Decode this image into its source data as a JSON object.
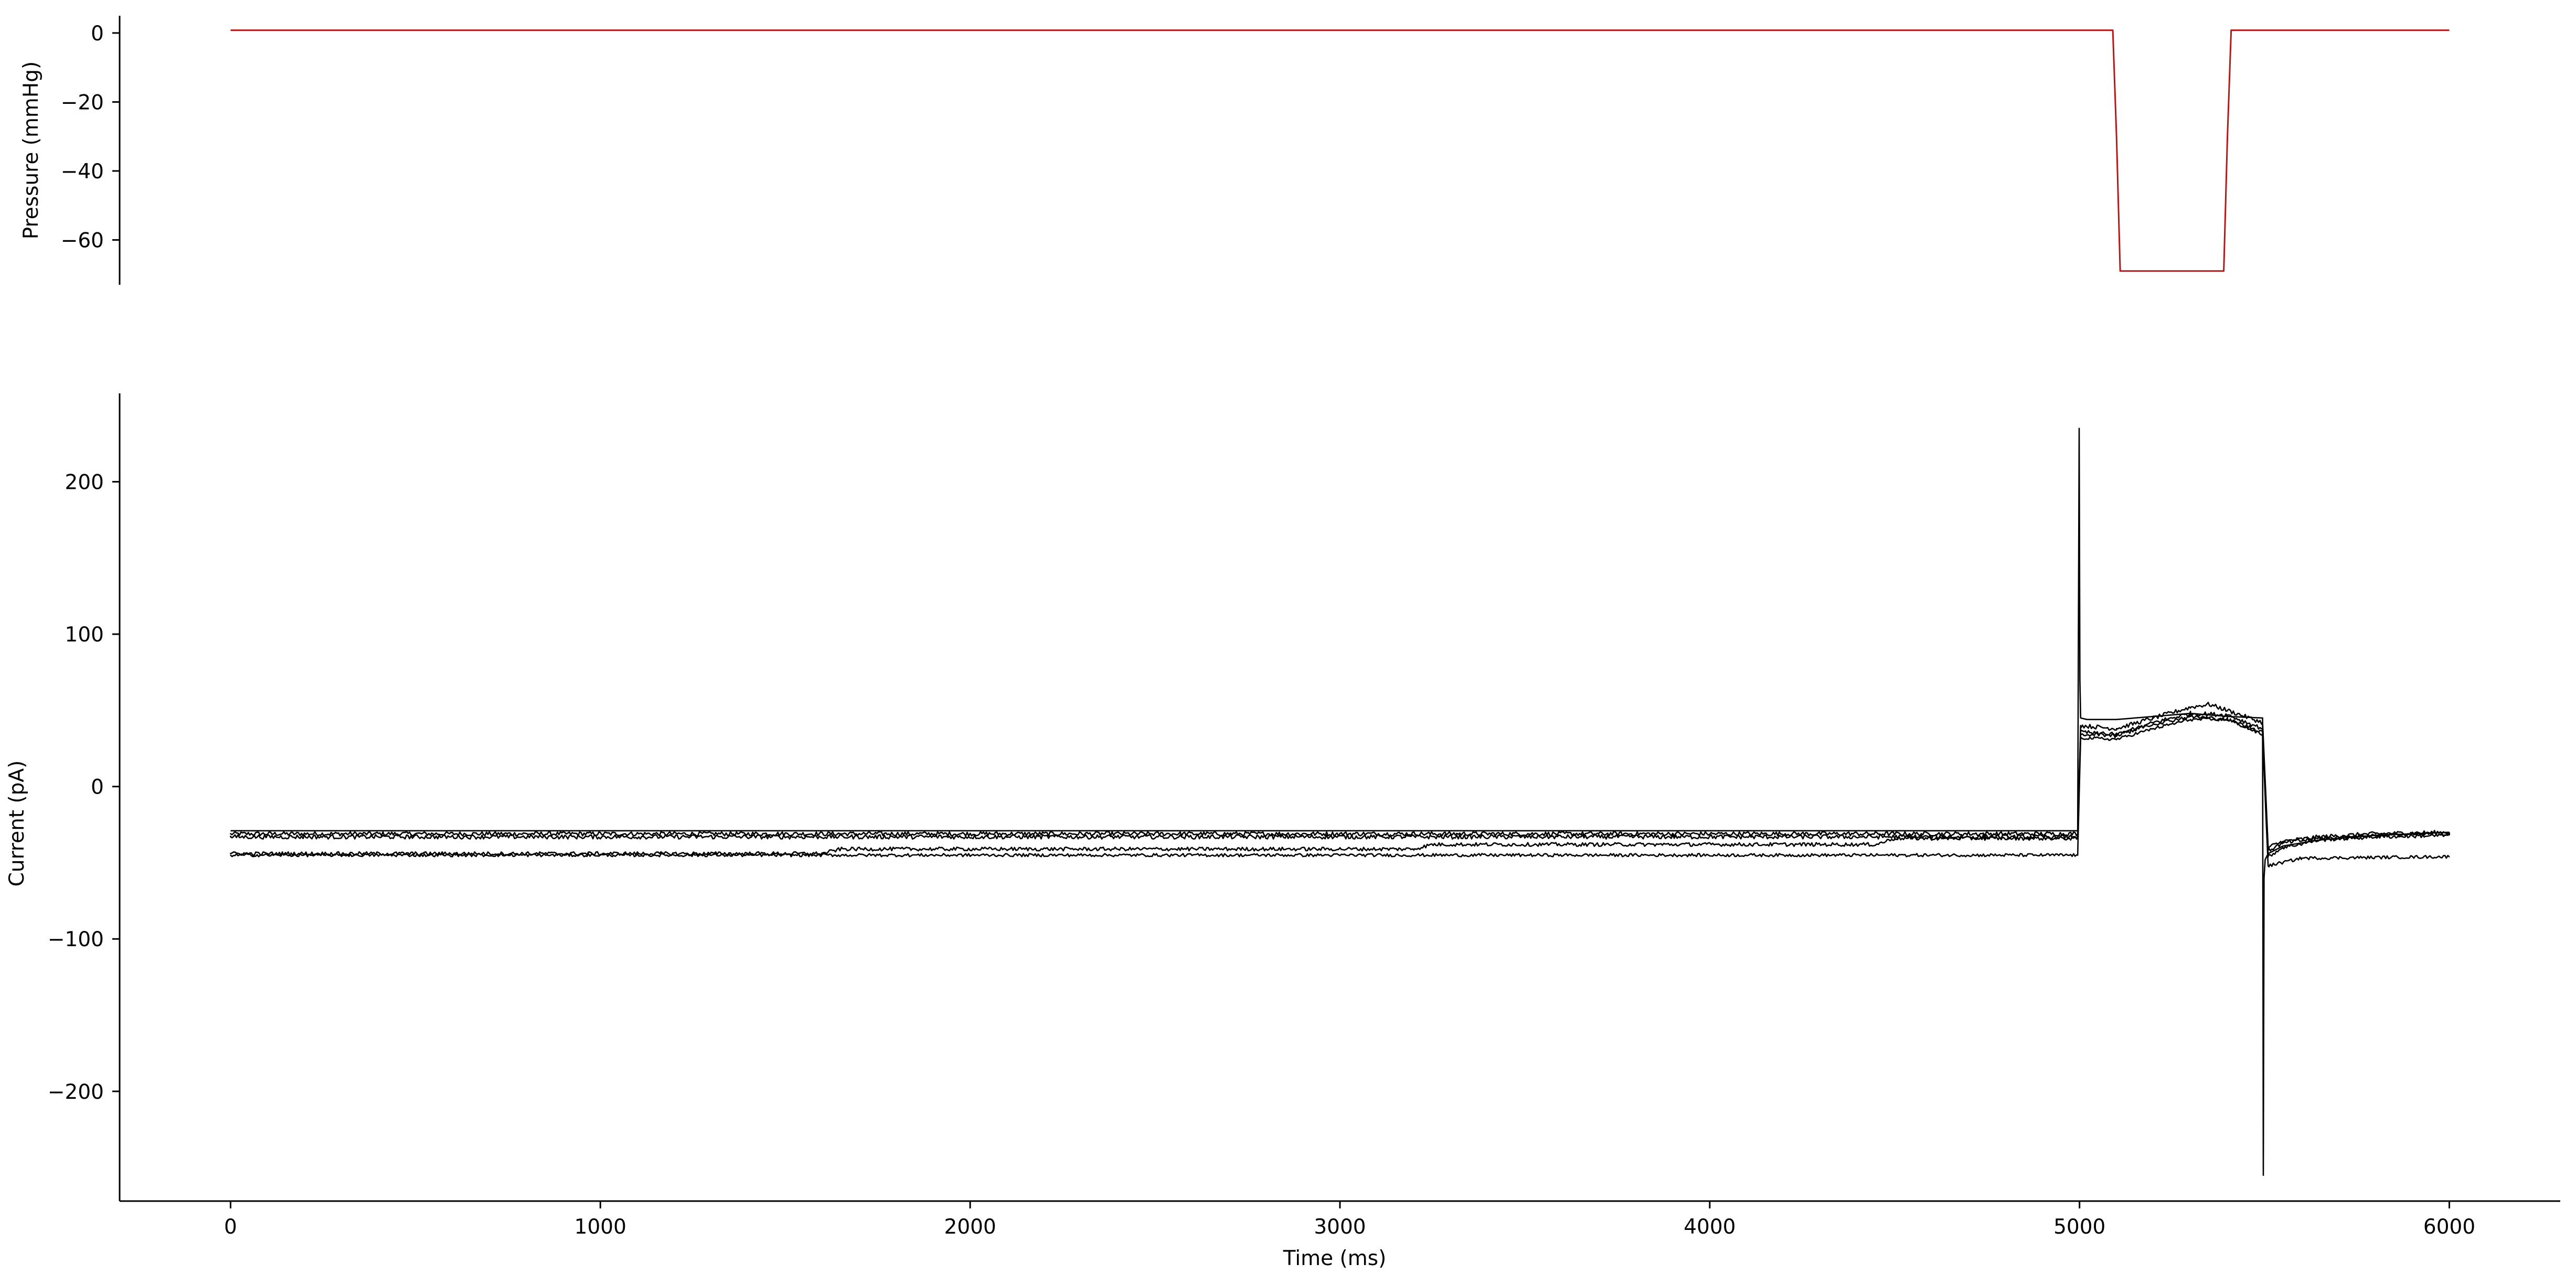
{
  "chart_data": [
    {
      "type": "line",
      "title": "",
      "xlabel": "",
      "ylabel": "Pressure (mmHg)",
      "xlim": [
        -300,
        6300
      ],
      "ylim": [
        -73,
        5
      ],
      "y_ticks": [
        0,
        -20,
        -40,
        -60
      ],
      "y_tick_labels": [
        "0",
        "−20",
        "−40",
        "−60"
      ],
      "grid": false,
      "legend": "none",
      "series": [
        {
          "color": "#b11a1a",
          "x": [
            0,
            5090,
            5100,
            5110,
            5390,
            5400,
            5410,
            6000
          ],
          "y": [
            0.8,
            0.8,
            -30,
            -69,
            -69,
            -30,
            0.8,
            0.8
          ]
        }
      ]
    },
    {
      "type": "line",
      "title": "",
      "xlabel": "Time (ms)",
      "ylabel": "Current (pA)",
      "xlim": [
        -300,
        6300
      ],
      "ylim": [
        -272,
        258
      ],
      "x_ticks": [
        0,
        1000,
        2000,
        3000,
        4000,
        5000,
        6000
      ],
      "x_tick_labels": [
        "0",
        "1000",
        "2000",
        "3000",
        "4000",
        "5000",
        "6000"
      ],
      "y_ticks": [
        200,
        100,
        0,
        -100,
        -200
      ],
      "y_tick_labels": [
        "200",
        "100",
        "0",
        "−100",
        "−200"
      ],
      "grid": false,
      "legend": "none",
      "series": [
        {
          "color": "#000000",
          "x": [
            0,
            4995,
            4999,
            5001,
            5003,
            5020,
            5100,
            5200,
            5300,
            5400,
            5495,
            5497,
            5499,
            5502,
            5510,
            5550,
            5650,
            5800,
            6000
          ],
          "y": [
            -29,
            -29,
            235,
            70,
            45,
            44,
            44,
            46,
            48,
            46,
            45,
            -255,
            -60,
            -48,
            -44,
            -39,
            -35,
            -32,
            -30
          ]
        },
        {
          "color": "#000000",
          "x": [
            0,
            4995,
            5003,
            5100,
            5200,
            5300,
            5350,
            5400,
            5495,
            5510,
            5550,
            5650,
            5800,
            6000
          ],
          "y": [
            -31,
            -31,
            40,
            38,
            45,
            52,
            54,
            50,
            42,
            -40,
            -36,
            -33,
            -31,
            -30
          ],
          "noise": 1.4
        },
        {
          "color": "#000000",
          "x": [
            0,
            4995,
            5003,
            5100,
            5200,
            5300,
            5400,
            5495,
            5510,
            5550,
            5650,
            5800,
            6000
          ],
          "y": [
            -33,
            -33,
            36,
            33,
            42,
            48,
            47,
            38,
            -42,
            -37,
            -34,
            -32,
            -31
          ],
          "noise": 1.4
        },
        {
          "color": "#000000",
          "x": [
            0,
            1600,
            1650,
            3200,
            3250,
            4450,
            4500,
            4995,
            5003,
            5100,
            5200,
            5300,
            5400,
            5495,
            5510,
            5550,
            5650,
            5800,
            6000
          ],
          "y": [
            -44,
            -44,
            -41,
            -41,
            -38,
            -38,
            -34,
            -34,
            34,
            35,
            41,
            46,
            44,
            36,
            -46,
            -40,
            -35,
            -33,
            -32
          ],
          "noise": 1.2
        },
        {
          "color": "#000000",
          "x": [
            0,
            4995,
            5003,
            5100,
            5200,
            5300,
            5400,
            5495,
            5510,
            5600,
            6000
          ],
          "y": [
            -45,
            -45,
            32,
            31,
            38,
            44,
            44,
            34,
            -52,
            -47,
            -46
          ],
          "noise": 1.0
        }
      ]
    }
  ]
}
